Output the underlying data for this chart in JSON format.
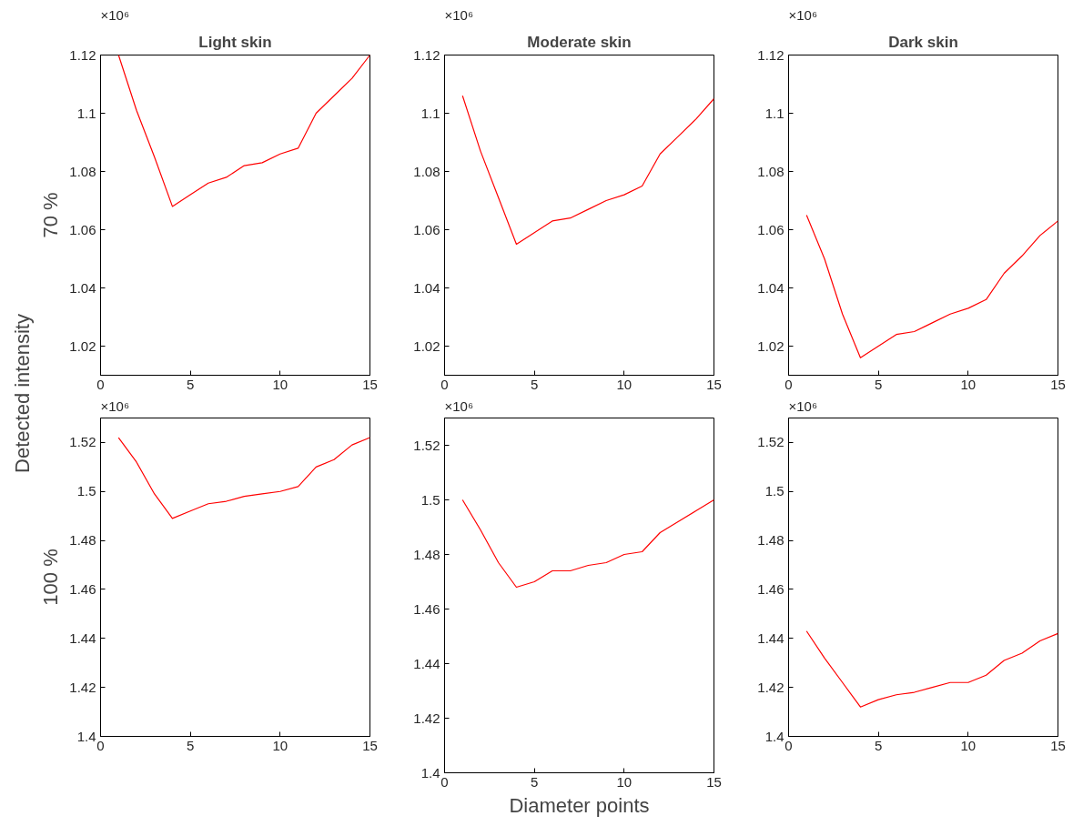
{
  "chart_data": [
    {
      "type": "line",
      "title": "Light skin",
      "ylabel": "70 %",
      "annotations": [
        "×10⁶",
        "Detected intensity"
      ],
      "x": [
        1,
        2,
        3,
        4,
        5,
        6,
        7,
        8,
        9,
        10,
        11,
        12,
        13,
        14,
        15
      ],
      "xlim": [
        0,
        15
      ],
      "xticks": [
        0,
        5,
        10,
        15
      ],
      "ylim": [
        1.01,
        1.12
      ],
      "yticks": [
        1.02,
        1.04,
        1.06,
        1.08,
        1.1,
        1.12
      ],
      "series": [
        {
          "color": "#ff0000",
          "values": [
            1.12,
            1.101,
            1.085,
            1.068,
            1.072,
            1.076,
            1.078,
            1.082,
            1.083,
            1.086,
            1.088,
            1.1,
            1.106,
            1.112,
            1.12
          ]
        }
      ]
    },
    {
      "type": "line",
      "title": "Moderate skin",
      "annotations": [
        "×10⁶"
      ],
      "x": [
        1,
        2,
        3,
        4,
        5,
        6,
        7,
        8,
        9,
        10,
        11,
        12,
        13,
        14,
        15
      ],
      "xlim": [
        0,
        15
      ],
      "xticks": [
        0,
        5,
        10,
        15
      ],
      "ylim": [
        1.01,
        1.12
      ],
      "yticks": [
        1.02,
        1.04,
        1.06,
        1.08,
        1.1,
        1.12
      ],
      "series": [
        {
          "color": "#ff0000",
          "values": [
            1.106,
            1.087,
            1.071,
            1.055,
            1.059,
            1.063,
            1.064,
            1.067,
            1.07,
            1.072,
            1.075,
            1.086,
            1.092,
            1.098,
            1.105
          ]
        }
      ]
    },
    {
      "type": "line",
      "title": "Dark skin",
      "annotations": [
        "×10⁶"
      ],
      "x": [
        1,
        2,
        3,
        4,
        5,
        6,
        7,
        8,
        9,
        10,
        11,
        12,
        13,
        14,
        15
      ],
      "xlim": [
        0,
        15
      ],
      "xticks": [
        0,
        5,
        10,
        15
      ],
      "ylim": [
        1.01,
        1.12
      ],
      "yticks": [
        1.02,
        1.04,
        1.06,
        1.08,
        1.1,
        1.12
      ],
      "series": [
        {
          "color": "#ff0000",
          "values": [
            1.065,
            1.05,
            1.031,
            1.016,
            1.02,
            1.024,
            1.025,
            1.028,
            1.031,
            1.033,
            1.036,
            1.045,
            1.051,
            1.058,
            1.063
          ]
        }
      ]
    },
    {
      "type": "line",
      "ylabel": "100 %",
      "annotations": [
        "×10⁶"
      ],
      "x": [
        1,
        2,
        3,
        4,
        5,
        6,
        7,
        8,
        9,
        10,
        11,
        12,
        13,
        14,
        15
      ],
      "xlim": [
        0,
        15
      ],
      "xticks": [
        0,
        5,
        10,
        15
      ],
      "ylim": [
        1.4,
        1.53
      ],
      "yticks": [
        1.4,
        1.42,
        1.44,
        1.46,
        1.48,
        1.5,
        1.52
      ],
      "series": [
        {
          "color": "#ff0000",
          "values": [
            1.522,
            1.512,
            1.499,
            1.489,
            1.492,
            1.495,
            1.496,
            1.498,
            1.499,
            1.5,
            1.502,
            1.51,
            1.513,
            1.519,
            1.522
          ]
        }
      ]
    },
    {
      "type": "line",
      "xlabel": "Diameter points",
      "annotations": [
        "×10⁶"
      ],
      "x": [
        1,
        2,
        3,
        4,
        5,
        6,
        7,
        8,
        9,
        10,
        11,
        12,
        13,
        14,
        15
      ],
      "xlim": [
        0,
        15
      ],
      "xticks": [
        0,
        5,
        10,
        15
      ],
      "ylim": [
        1.4,
        1.53
      ],
      "yticks": [
        1.4,
        1.42,
        1.44,
        1.46,
        1.48,
        1.5,
        1.52
      ],
      "series": [
        {
          "color": "#ff0000",
          "values": [
            1.5,
            1.489,
            1.477,
            1.468,
            1.47,
            1.474,
            1.474,
            1.476,
            1.477,
            1.48,
            1.481,
            1.488,
            1.492,
            1.496,
            1.5
          ]
        }
      ]
    },
    {
      "type": "line",
      "annotations": [
        "×10⁶"
      ],
      "x": [
        1,
        2,
        3,
        4,
        5,
        6,
        7,
        8,
        9,
        10,
        11,
        12,
        13,
        14,
        15
      ],
      "xlim": [
        0,
        15
      ],
      "xticks": [
        0,
        5,
        10,
        15
      ],
      "ylim": [
        1.4,
        1.53
      ],
      "yticks": [
        1.4,
        1.42,
        1.44,
        1.46,
        1.48,
        1.5,
        1.52
      ],
      "series": [
        {
          "color": "#ff0000",
          "values": [
            1.443,
            1.432,
            1.422,
            1.412,
            1.415,
            1.417,
            1.418,
            1.42,
            1.422,
            1.422,
            1.425,
            1.431,
            1.434,
            1.439,
            1.442
          ]
        }
      ]
    }
  ]
}
